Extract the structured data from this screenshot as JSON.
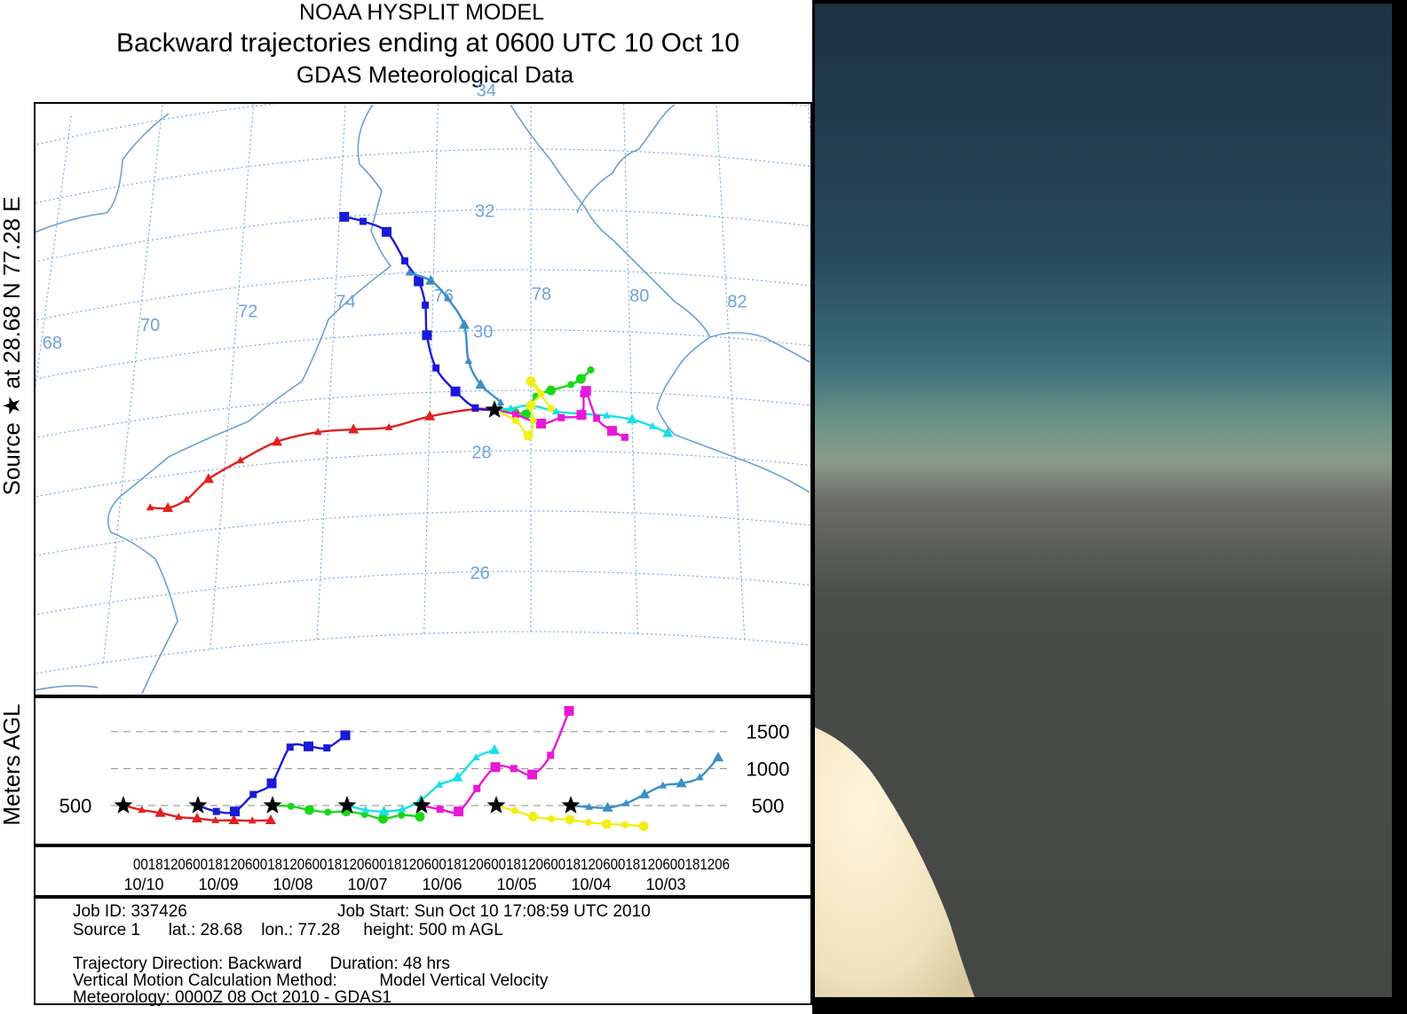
{
  "header": {
    "model": "NOAA HYSPLIT MODEL",
    "title": "Backward trajectories ending at 0600 UTC 10 Oct 10",
    "subtitle": "GDAS Meteorological Data"
  },
  "source_label": "Source ★ at 28.68 N 77.28 E",
  "height_axis_label": "Meters AGL",
  "chart_data": [
    {
      "type": "map-trajectory",
      "lon_ticks": [
        68,
        70,
        72,
        74,
        76,
        78,
        80,
        82
      ],
      "lat_ticks": [
        34,
        32,
        30,
        28,
        26
      ],
      "lon_tick_labels": [
        "68",
        "70",
        "72",
        "74",
        "76",
        "78",
        "80",
        "82"
      ],
      "lat_tick_labels": [
        "34",
        "32",
        "30",
        "28",
        "26"
      ],
      "source": {
        "lat": 28.68,
        "lon": 77.28
      },
      "colors": {
        "red": "#e02020",
        "blue": "#1a1ad8",
        "green": "#18d818",
        "cyan": "#18e0e8",
        "magenta": "#e818d8",
        "yellow": "#f0f018",
        "steelblue": "#3a8fc8",
        "coast": "#6f9fd0",
        "grid": "#6fa3d8"
      },
      "trajectories": [
        {
          "color": "red",
          "marker": "triangle",
          "points": [
            [
              77.28,
              28.68
            ],
            [
              76.9,
              28.7
            ],
            [
              76.0,
              28.6
            ],
            [
              75.2,
              28.45
            ],
            [
              74.5,
              28.45
            ],
            [
              73.8,
              28.45
            ],
            [
              73.0,
              28.35
            ],
            [
              72.3,
              28.1
            ],
            [
              71.7,
              27.85
            ],
            [
              71.3,
              27.55
            ],
            [
              70.95,
              27.45
            ],
            [
              70.6,
              27.5
            ]
          ]
        },
        {
          "color": "blue",
          "marker": "square",
          "points": [
            [
              77.28,
              28.68
            ],
            [
              76.9,
              28.72
            ],
            [
              76.5,
              29.0
            ],
            [
              76.1,
              29.4
            ],
            [
              75.9,
              29.95
            ],
            [
              75.85,
              30.45
            ],
            [
              75.7,
              30.85
            ],
            [
              75.4,
              31.2
            ],
            [
              75.0,
              31.7
            ],
            [
              74.5,
              31.9
            ],
            [
              74.1,
              32.0
            ]
          ]
        },
        {
          "color": "steelblue",
          "marker": "triangle",
          "points": [
            [
              77.28,
              28.68
            ],
            [
              77.4,
              28.8
            ],
            [
              77.0,
              29.1
            ],
            [
              76.75,
              29.5
            ],
            [
              76.65,
              30.1
            ],
            [
              76.3,
              30.55
            ],
            [
              75.95,
              30.85
            ],
            [
              75.5,
              31.0
            ]
          ]
        },
        {
          "color": "green",
          "marker": "circle",
          "points": [
            [
              77.28,
              28.68
            ],
            [
              77.7,
              28.65
            ],
            [
              77.9,
              28.6
            ],
            [
              78.1,
              28.9
            ],
            [
              78.4,
              29.0
            ],
            [
              78.8,
              29.1
            ],
            [
              79.0,
              29.2
            ],
            [
              79.2,
              29.35
            ]
          ]
        },
        {
          "color": "cyan",
          "marker": "triangle",
          "points": [
            [
              77.28,
              28.68
            ],
            [
              77.6,
              28.7
            ],
            [
              78.0,
              28.75
            ],
            [
              78.5,
              28.65
            ],
            [
              79.0,
              28.62
            ],
            [
              79.5,
              28.6
            ],
            [
              80.0,
              28.55
            ],
            [
              80.4,
              28.45
            ],
            [
              80.7,
              28.35
            ]
          ]
        },
        {
          "color": "magenta",
          "marker": "square",
          "points": [
            [
              77.28,
              28.68
            ],
            [
              77.7,
              28.6
            ],
            [
              78.2,
              28.45
            ],
            [
              78.6,
              28.55
            ],
            [
              79.0,
              28.6
            ],
            [
              79.05,
              28.95
            ],
            [
              79.1,
              29.0
            ],
            [
              79.3,
              28.55
            ],
            [
              79.6,
              28.35
            ],
            [
              79.85,
              28.25
            ]
          ]
        },
        {
          "color": "yellow",
          "marker": "circle",
          "points": [
            [
              77.28,
              28.68
            ],
            [
              77.7,
              28.5
            ],
            [
              77.95,
              28.25
            ],
            [
              78.05,
              28.5
            ],
            [
              78.0,
              28.75
            ],
            [
              78.2,
              28.95
            ],
            [
              78.0,
              29.15
            ],
            [
              78.4,
              28.7
            ]
          ]
        }
      ]
    },
    {
      "type": "line",
      "ylabel": "Meters AGL",
      "y_ticks": [
        1500,
        1000,
        500
      ],
      "y_tick_labels": [
        "1500",
        "1000",
        "500"
      ],
      "ylim": [
        250,
        1800
      ],
      "x_hour_labels": "00181206001812060018120600181206001812060018120600181206001812060018120600181206",
      "x_dates": [
        "10/10",
        "10/09",
        "10/08",
        "10/07",
        "10/06",
        "10/05",
        "10/04",
        "10/03"
      ],
      "series": [
        {
          "color": "red",
          "marker": "triangle",
          "x": [
            0,
            6,
            12,
            18,
            24,
            30,
            36,
            42,
            48
          ],
          "y": [
            500,
            440,
            400,
            345,
            325,
            300,
            300,
            295,
            300
          ]
        },
        {
          "color": "blue",
          "marker": "square",
          "x": [
            0,
            6,
            12,
            18,
            24,
            30,
            36,
            42,
            48
          ],
          "y": [
            500,
            420,
            420,
            650,
            800,
            1290,
            1300,
            1280,
            1450
          ]
        },
        {
          "color": "green",
          "marker": "circle",
          "x": [
            0,
            6,
            12,
            18,
            24,
            30,
            36,
            42,
            48
          ],
          "y": [
            500,
            490,
            440,
            410,
            420,
            380,
            320,
            370,
            350
          ]
        },
        {
          "color": "cyan",
          "marker": "triangle",
          "x": [
            0,
            6,
            12,
            18,
            24,
            30,
            36,
            42,
            48
          ],
          "y": [
            500,
            440,
            420,
            450,
            570,
            780,
            880,
            1150,
            1250
          ]
        },
        {
          "color": "magenta",
          "marker": "square",
          "x": [
            0,
            6,
            12,
            18,
            24,
            30,
            36,
            42,
            48
          ],
          "y": [
            500,
            450,
            420,
            730,
            1020,
            1000,
            920,
            1180,
            1780
          ]
        },
        {
          "color": "yellow",
          "marker": "circle",
          "x": [
            0,
            6,
            12,
            18,
            24,
            30,
            36,
            42,
            48
          ],
          "y": [
            500,
            430,
            350,
            320,
            310,
            270,
            250,
            240,
            220
          ]
        },
        {
          "color": "steelblue",
          "marker": "triangle",
          "x": [
            0,
            6,
            12,
            18,
            24,
            30,
            36,
            42,
            48
          ],
          "y": [
            500,
            480,
            470,
            530,
            650,
            770,
            800,
            880,
            1150
          ]
        }
      ]
    }
  ],
  "footer": {
    "job_id": "Job ID: 337426",
    "job_start": "Job Start: Sun Oct 10 17:08:59 UTC 2010",
    "source": "Source 1      lat.: 28.68    lon.: 77.28     height: 500 m AGL",
    "direction": "Trajectory Direction: Backward      Duration: 48 hrs",
    "vertical_method": "Vertical Motion Calculation Method:         Model Vertical Velocity",
    "meteorology": "Meteorology: 0000Z 08 Oct 2010 - GDAS1"
  }
}
